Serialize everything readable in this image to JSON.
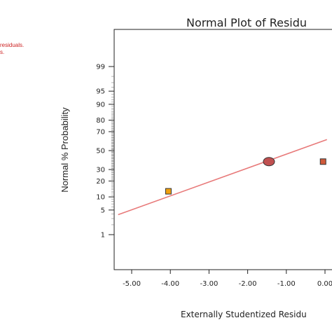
{
  "notes": [
    "residuals.",
    "s."
  ],
  "chart_data": {
    "type": "scatter",
    "title": "Normal Plot of Residu",
    "xlabel": "Externally Studentized Residu",
    "ylabel": "Normal % Probability",
    "x_ticks": [
      -5.0,
      -4.0,
      -3.0,
      -2.0,
      -1.0,
      0.0
    ],
    "x_tick_labels": [
      "-5.00",
      "-4.00",
      "-3.00",
      "-2.00",
      "-1.00",
      "0.00"
    ],
    "y_ticks": [
      1,
      5,
      10,
      20,
      30,
      50,
      70,
      80,
      90,
      95,
      99
    ],
    "y_tick_labels": [
      "1",
      "5",
      "10",
      "20",
      "30",
      "50",
      "70",
      "80",
      "90",
      "95",
      "99"
    ],
    "points": [
      {
        "x": -4.05,
        "y": 13,
        "color": "#f0a010",
        "shape": "square"
      },
      {
        "x": -1.45,
        "y": 38,
        "color": "#c05050",
        "shape": "circle"
      },
      {
        "x": -0.05,
        "y": 38,
        "color": "#d05a3a",
        "shape": "square"
      }
    ],
    "fit_line": {
      "x1": -5.35,
      "y1": 3.8,
      "x2": 0.05,
      "y2": 62,
      "color": "#e87a7a"
    },
    "grid": false
  }
}
